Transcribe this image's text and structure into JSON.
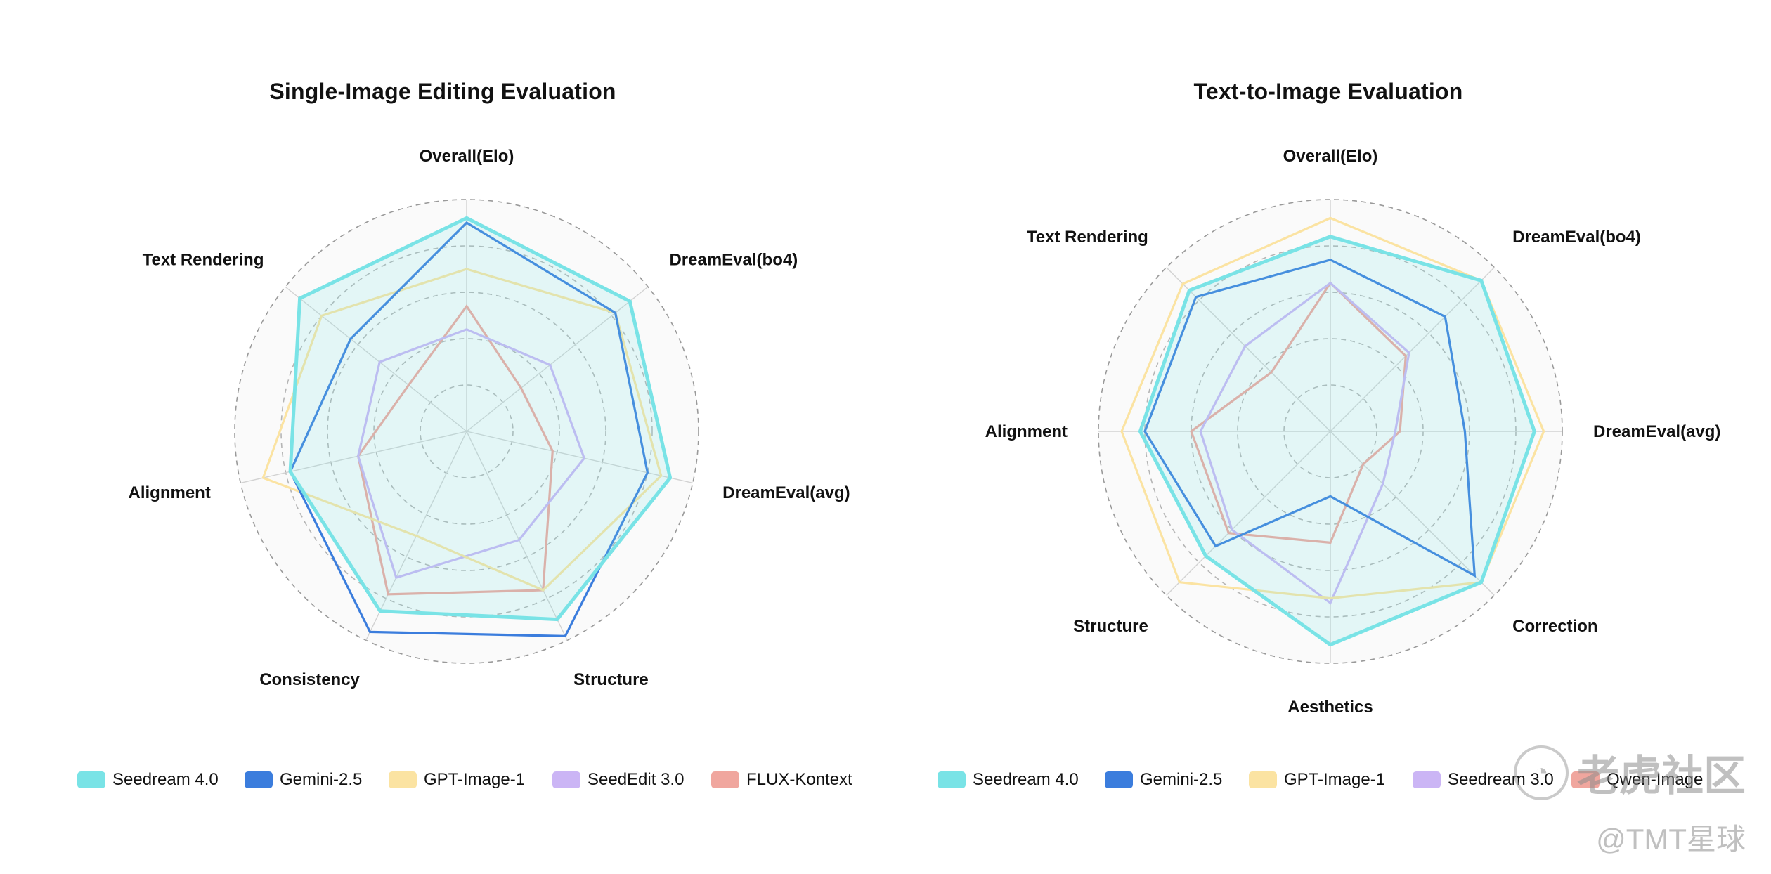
{
  "chart_data": [
    {
      "type": "radar",
      "title": "Single-Image Editing Evaluation",
      "axes": [
        "Overall(Elo)",
        "DreamEval(bo4)",
        "DreamEval(avg)",
        "Structure",
        "Consistency",
        "Alignment",
        "Text Rendering"
      ],
      "rlim": [
        0,
        5
      ],
      "grid": true,
      "legend_placement": "bottom",
      "series": [
        {
          "name": "Seedream 4.0",
          "color": "#79e3e6",
          "values": [
            4.6,
            4.5,
            4.5,
            4.5,
            4.3,
            3.9,
            4.6
          ]
        },
        {
          "name": "Gemini-2.5",
          "color": "#3b7ddd",
          "values": [
            4.5,
            4.1,
            4.0,
            4.9,
            4.8,
            3.9,
            3.2
          ]
        },
        {
          "name": "GPT-Image-1",
          "color": "#fbe3a2",
          "values": [
            3.5,
            4.1,
            4.3,
            3.8,
            2.5,
            4.5,
            4.0
          ]
        },
        {
          "name": "SeedEdit 3.0",
          "color": "#cbb5f5",
          "values": [
            2.2,
            2.3,
            2.6,
            2.6,
            3.5,
            2.4,
            2.4
          ]
        },
        {
          "name": "FLUX-Kontext",
          "color": "#f0a69e",
          "values": [
            2.7,
            1.5,
            1.9,
            3.8,
            3.9,
            2.4,
            1.6
          ]
        }
      ]
    },
    {
      "type": "radar",
      "title": "Text-to-Image Evaluation",
      "axes": [
        "Overall(Elo)",
        "DreamEval(bo4)",
        "DreamEval(avg)",
        "Correction",
        "Aesthetics",
        "Structure",
        "Alignment",
        "Text Rendering"
      ],
      "rlim": [
        0,
        5
      ],
      "grid": true,
      "legend_placement": "bottom",
      "series": [
        {
          "name": "Seedream 4.0",
          "color": "#79e3e6",
          "values": [
            4.2,
            4.6,
            4.4,
            4.6,
            4.6,
            3.8,
            4.1,
            4.3
          ]
        },
        {
          "name": "Gemini-2.5",
          "color": "#3b7ddd",
          "values": [
            3.7,
            3.5,
            2.9,
            4.4,
            1.4,
            3.5,
            4.0,
            4.1
          ]
        },
        {
          "name": "GPT-Image-1",
          "color": "#fbe3a2",
          "values": [
            4.6,
            4.6,
            4.6,
            4.6,
            3.6,
            4.6,
            4.5,
            4.5
          ]
        },
        {
          "name": "Seedream 3.0",
          "color": "#cbb5f5",
          "values": [
            3.2,
            2.4,
            1.4,
            1.6,
            3.7,
            3.0,
            2.8,
            2.6
          ]
        },
        {
          "name": "Qwen-Image",
          "color": "#f0a69e",
          "values": [
            3.2,
            2.3,
            1.5,
            1.0,
            2.4,
            3.1,
            3.0,
            1.8
          ]
        }
      ]
    }
  ],
  "legends": [
    [
      {
        "label": "Seedream 4.0",
        "color": "#79e3e6"
      },
      {
        "label": "Gemini-2.5",
        "color": "#3b7ddd"
      },
      {
        "label": "GPT-Image-1",
        "color": "#fbe3a2"
      },
      {
        "label": "SeedEdit 3.0",
        "color": "#cbb5f5"
      },
      {
        "label": "FLUX-Kontext",
        "color": "#f0a69e"
      }
    ],
    [
      {
        "label": "Seedream 4.0",
        "color": "#79e3e6"
      },
      {
        "label": "Gemini-2.5",
        "color": "#3b7ddd"
      },
      {
        "label": "GPT-Image-1",
        "color": "#fbe3a2"
      },
      {
        "label": "Seedream 3.0",
        "color": "#cbb5f5"
      },
      {
        "label": "Qwen-Image",
        "color": "#f0a69e"
      }
    ]
  ],
  "watermark": {
    "main": "老虎社区",
    "sub": "@TMT星球"
  }
}
